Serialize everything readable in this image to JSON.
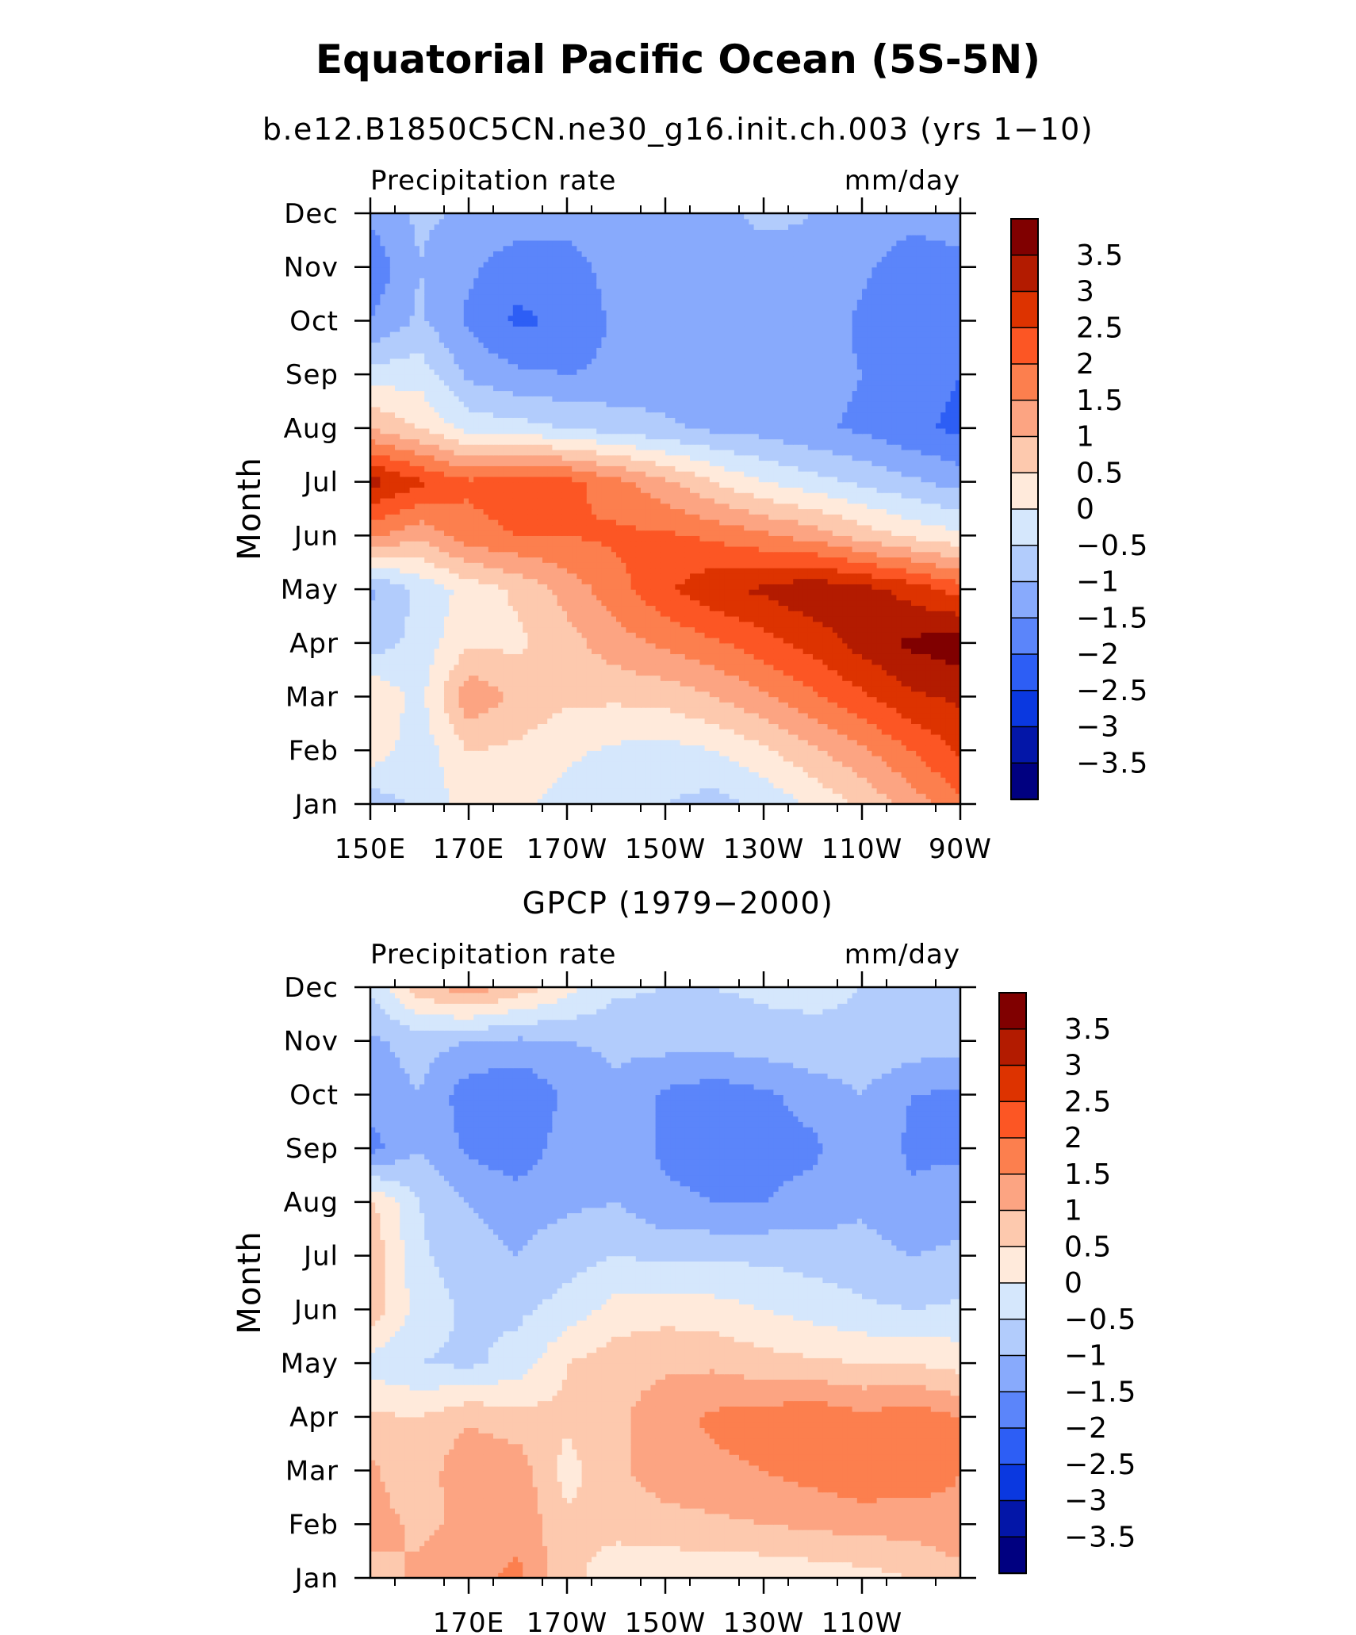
{
  "title": "Equatorial Pacific Ocean (5S-5N)",
  "chart_data": [
    {
      "type": "heatmap",
      "title": "b.e12.B1850C5CN.ne30_g16.init.ch.003 (yrs 1−10)",
      "left_label": "Precipitation rate",
      "right_label": "mm/day",
      "ylabel": "Month",
      "xlabel": "",
      "x_ticks": [
        "150E",
        "170E",
        "170W",
        "150W",
        "130W",
        "110W",
        "90W"
      ],
      "y_ticks": [
        "Jan",
        "Feb",
        "Mar",
        "Apr",
        "May",
        "Jun",
        "Jul",
        "Aug",
        "Sep",
        "Oct",
        "Nov",
        "Dec"
      ],
      "x": [
        150,
        160,
        170,
        180,
        190,
        200,
        210,
        220,
        230,
        240,
        250,
        260,
        270
      ],
      "z": [
        [
          -0.8,
          -0.4,
          0.2,
          0.1,
          -0.2,
          -0.3,
          -0.5,
          -0.7,
          -0.4,
          0.1,
          0.6,
          1.2,
          1.9
        ],
        [
          0.3,
          -0.3,
          0.5,
          0.4,
          0.1,
          -0.1,
          -0.2,
          0.0,
          0.4,
          0.9,
          1.4,
          2.0,
          2.6
        ],
        [
          0.5,
          -0.2,
          1.4,
          0.9,
          0.6,
          0.6,
          0.7,
          1.0,
          1.4,
          1.9,
          2.4,
          2.9,
          3.1
        ],
        [
          -0.8,
          -0.3,
          0.4,
          0.4,
          0.8,
          1.3,
          1.6,
          1.9,
          2.3,
          2.7,
          3.2,
          3.6,
          3.8
        ],
        [
          -1.1,
          -0.4,
          0.2,
          0.6,
          1.2,
          1.8,
          2.4,
          2.9,
          3.1,
          3.4,
          3.2,
          2.8,
          2.3
        ],
        [
          1.6,
          1.1,
          1.8,
          2.0,
          2.0,
          2.1,
          2.1,
          1.9,
          1.6,
          1.3,
          0.8,
          0.4,
          0.1
        ],
        [
          3.2,
          2.6,
          2.1,
          2.4,
          2.2,
          1.7,
          1.1,
          0.5,
          0.0,
          -0.3,
          -0.6,
          -0.9,
          -1.2
        ],
        [
          1.0,
          0.5,
          -0.2,
          -0.3,
          -0.5,
          -0.7,
          -0.9,
          -1.1,
          -1.2,
          -1.4,
          -1.6,
          -1.9,
          -2.1
        ],
        [
          -0.3,
          -0.2,
          -1.1,
          -1.4,
          -1.5,
          -1.4,
          -1.3,
          -1.4,
          -1.3,
          -1.3,
          -1.5,
          -1.8,
          -2.0
        ],
        [
          -1.5,
          -0.9,
          -1.6,
          -2.1,
          -1.9,
          -1.4,
          -1.5,
          -1.3,
          -1.3,
          -1.2,
          -1.6,
          -1.9,
          -1.8
        ],
        [
          -1.9,
          -1.0,
          -1.4,
          -1.8,
          -1.7,
          -1.3,
          -1.1,
          -1.2,
          -1.2,
          -1.1,
          -1.4,
          -1.8,
          -1.6
        ],
        [
          -1.4,
          -0.9,
          -1.1,
          -1.2,
          -1.3,
          -1.2,
          -1.2,
          -1.1,
          -0.9,
          -1.0,
          -1.2,
          -1.3,
          -1.3
        ]
      ]
    },
    {
      "type": "heatmap",
      "title": "GPCP (1979−2000)",
      "left_label": "Precipitation rate",
      "right_label": "mm/day",
      "ylabel": "Month",
      "xlabel": "",
      "x_ticks": [
        "170E",
        "170W",
        "150W",
        "130W",
        "110W"
      ],
      "y_ticks": [
        "Jan",
        "Feb",
        "Mar",
        "Apr",
        "May",
        "Jun",
        "Jul",
        "Aug",
        "Sep",
        "Oct",
        "Nov",
        "Dec"
      ],
      "x": [
        150,
        160,
        170,
        180,
        190,
        200,
        210,
        220,
        230,
        240,
        250,
        260,
        270
      ],
      "z": [
        [
          0.8,
          1.1,
          1.4,
          1.6,
          0.6,
          0.3,
          0.1,
          0.1,
          0.1,
          0.2,
          0.3,
          0.5,
          0.8
        ],
        [
          1.2,
          0.9,
          1.1,
          1.4,
          0.6,
          0.6,
          0.8,
          0.9,
          1.0,
          1.1,
          1.2,
          1.2,
          1.4
        ],
        [
          1.1,
          0.6,
          1.5,
          1.3,
          0.3,
          0.9,
          1.3,
          1.4,
          1.5,
          1.7,
          1.9,
          1.8,
          1.5
        ],
        [
          0.6,
          0.5,
          0.9,
          0.7,
          0.6,
          0.9,
          1.3,
          1.6,
          1.7,
          1.9,
          1.6,
          1.8,
          1.5
        ],
        [
          -0.2,
          -0.5,
          -0.6,
          -0.3,
          0.5,
          0.8,
          0.9,
          0.9,
          0.7,
          0.6,
          0.5,
          0.5,
          0.3
        ],
        [
          0.8,
          -0.2,
          -0.6,
          -0.6,
          -0.3,
          0.2,
          0.3,
          0.2,
          0.0,
          -0.2,
          -0.4,
          -0.5,
          -0.4
        ],
        [
          0.9,
          -0.4,
          -0.8,
          -1.0,
          -0.7,
          -0.5,
          -0.6,
          -0.6,
          -0.6,
          -0.7,
          -0.8,
          -1.0,
          -0.9
        ],
        [
          0.6,
          -0.5,
          -1.0,
          -1.2,
          -1.1,
          -1.0,
          -1.4,
          -1.5,
          -1.5,
          -1.3,
          -1.1,
          -1.4,
          -1.2
        ],
        [
          -1.7,
          -1.0,
          -1.6,
          -1.9,
          -1.2,
          -1.2,
          -1.6,
          -1.7,
          -1.7,
          -1.6,
          -1.1,
          -1.6,
          -1.6
        ],
        [
          -1.3,
          -1.0,
          -1.8,
          -2.0,
          -1.4,
          -1.1,
          -1.6,
          -1.8,
          -1.6,
          -1.3,
          -1.0,
          -1.5,
          -1.6
        ],
        [
          -1.1,
          -0.8,
          -1.0,
          -1.1,
          -1.0,
          -0.9,
          -0.8,
          -0.8,
          -0.7,
          -0.6,
          -0.6,
          -0.7,
          -0.8
        ],
        [
          -0.4,
          0.8,
          1.3,
          0.8,
          0.2,
          -0.4,
          -0.5,
          -0.5,
          -0.4,
          -0.4,
          -0.5,
          -0.6,
          -0.6
        ]
      ]
    }
  ],
  "colorbar": {
    "labels": [
      "3.5",
      "3",
      "2.5",
      "2",
      "1.5",
      "1",
      "0.5",
      "0",
      "−0.5",
      "−1",
      "−1.5",
      "−2",
      "−2.5",
      "−3",
      "−3.5"
    ],
    "colors": [
      "#800000",
      "#b31b00",
      "#dd3300",
      "#fc5624",
      "#fc7f4e",
      "#fca482",
      "#fdc9ae",
      "#ffeadb",
      "#d5e7fc",
      "#b2ccfc",
      "#88aafc",
      "#5b85fa",
      "#2d5ef5",
      "#0a38e0",
      "#0316a8",
      "#000080"
    ]
  }
}
